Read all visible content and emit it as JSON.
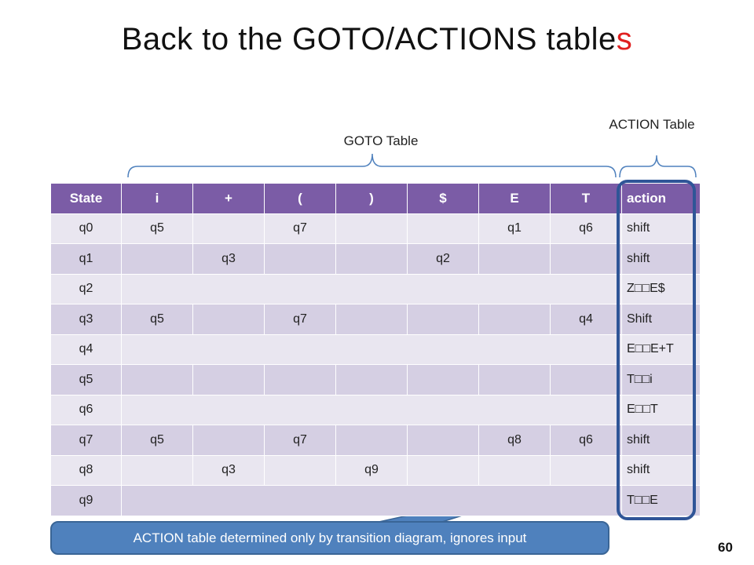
{
  "title": {
    "main": "Back to the GOTO/ACTIONS table",
    "accent": "s"
  },
  "goto_label": "GOTO Table",
  "action_label": "ACTION Table",
  "table": {
    "headers": [
      "State",
      "i",
      "+",
      "(",
      ")",
      "$",
      "E",
      "T",
      "action"
    ],
    "rows": [
      {
        "state": "q0",
        "cells": [
          "q5",
          "",
          "q7",
          "",
          "",
          "q1",
          "q6"
        ],
        "action": "shift"
      },
      {
        "state": "q1",
        "cells": [
          "",
          "q3",
          "",
          "",
          "q2",
          "",
          ""
        ],
        "action": "shift"
      },
      {
        "state": "q2",
        "cells": [],
        "action": "Z□□E$"
      },
      {
        "state": "q3",
        "cells": [
          "q5",
          "",
          "q7",
          "",
          "",
          "",
          "q4"
        ],
        "action": "Shift"
      },
      {
        "state": "q4",
        "cells": [],
        "action": "E□□E+T"
      },
      {
        "state": "q5",
        "cells": [
          "",
          "",
          "",
          "",
          "",
          "",
          ""
        ],
        "action": "T□□i"
      },
      {
        "state": "q6",
        "cells": [],
        "action": "E□□T"
      },
      {
        "state": "q7",
        "cells": [
          "q5",
          "",
          "q7",
          "",
          "",
          "q8",
          "q6"
        ],
        "action": "shift"
      },
      {
        "state": "q8",
        "cells": [
          "",
          "q3",
          "",
          "q9",
          "",
          "",
          ""
        ],
        "action": "shift"
      },
      {
        "state": "q9",
        "cells": [],
        "action": "T□□E"
      }
    ]
  },
  "callout": "ACTION table determined only by transition diagram, ignores input",
  "page_number": "60",
  "colors": {
    "header": "#7b5ca6",
    "row_light": "#e9e6f0",
    "row_dark": "#d5cfe3",
    "accent": "#e02020",
    "callout": "#4f81bd",
    "highlight": "#2f5597"
  }
}
